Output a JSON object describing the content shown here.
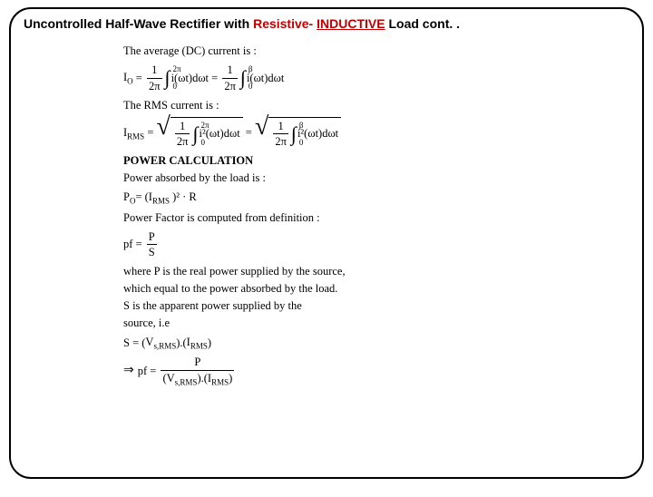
{
  "title": {
    "part1": "Uncontrolled Half-Wave Rectifier with ",
    "red1": "Resistive- ",
    "red_underline": "INDUCTIVE",
    "part2": " Load cont. ."
  },
  "lines": {
    "avg_current_label": "The average (DC) current is :",
    "Io_lhs": "I",
    "Io_sub": "O",
    "one": "1",
    "two_pi": "2π",
    "int_ub_2pi": "2π",
    "int_ub_beta": "β",
    "int_lb_0": "0",
    "integrand_i": "i(ωt)dωt",
    "rms_label": "The RMS current is :",
    "Irms_sub": "RMS",
    "integrand_i2": "i²(ωt)dωt",
    "power_calc": "POWER CALCULATION",
    "power_absorbed": "Power absorbed by the load is :",
    "Po": "P",
    "Po_sub": "O",
    "Po_expr_mid": " = (I",
    "Po_expr_sq": " )² · R",
    "pf_label": "Power Factor is computed from definition :",
    "pf": "pf",
    "P": "P",
    "S": "S",
    "where1": "where P is the real power supplied by the source,",
    "where2": "which equal to the power absorbed by the load.",
    "where3": "S is the apparent power supplied by the",
    "where4": "source, i.e",
    "S_expr_v": "V",
    "S_expr_vsub": "s,RMS",
    "S_expr_i": "I",
    "S_expr_isub": "RMS",
    "implies": "⇒"
  },
  "style": {
    "background": "#ffffff",
    "title_color": "#000000",
    "accent_color": "#c00000",
    "body_fontsize": 12.5,
    "title_fontsize": 14,
    "border_radius": 24,
    "border_width": 2
  }
}
